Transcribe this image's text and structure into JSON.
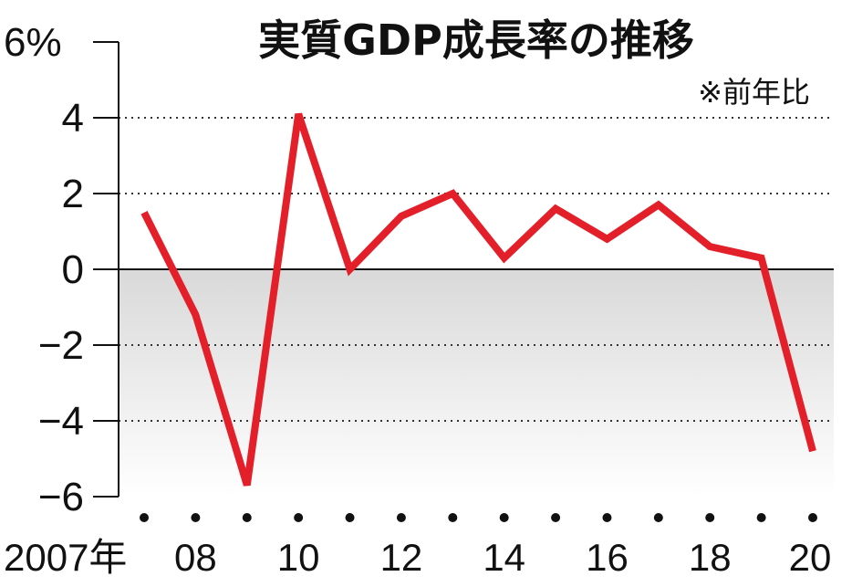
{
  "chart_data": {
    "type": "line",
    "title": "実質GDP成長率の推移",
    "note": "※前年比",
    "x": [
      2007,
      2008,
      2009,
      2010,
      2011,
      2012,
      2013,
      2014,
      2015,
      2016,
      2017,
      2018,
      2019,
      2020
    ],
    "x_tick_labels": [
      "2007年",
      "08",
      "10",
      "12",
      "14",
      "16",
      "18",
      "20"
    ],
    "x_tick_values": [
      2007,
      2008,
      2010,
      2012,
      2014,
      2016,
      2018,
      2020
    ],
    "y_tick_labels": [
      "6%",
      "4",
      "2",
      "0",
      "−2",
      "−4",
      "−6"
    ],
    "y_tick_values": [
      6,
      4,
      2,
      0,
      -2,
      -4,
      -6
    ],
    "ylim": [
      -6,
      6
    ],
    "xlim": [
      2007,
      2020
    ],
    "series": [
      {
        "name": "実質GDP成長率",
        "color": "#e3202a",
        "values": [
          1.5,
          -1.2,
          -5.7,
          4.1,
          0.0,
          1.4,
          2.0,
          0.3,
          1.6,
          0.8,
          1.7,
          0.6,
          0.3,
          -4.8
        ]
      }
    ],
    "grid": "dotted",
    "negative_shading": true
  },
  "colors": {
    "line": "#e3202a",
    "axis": "#111111",
    "shade_top": "#d8d8d8",
    "shade_bottom": "#ffffff"
  }
}
